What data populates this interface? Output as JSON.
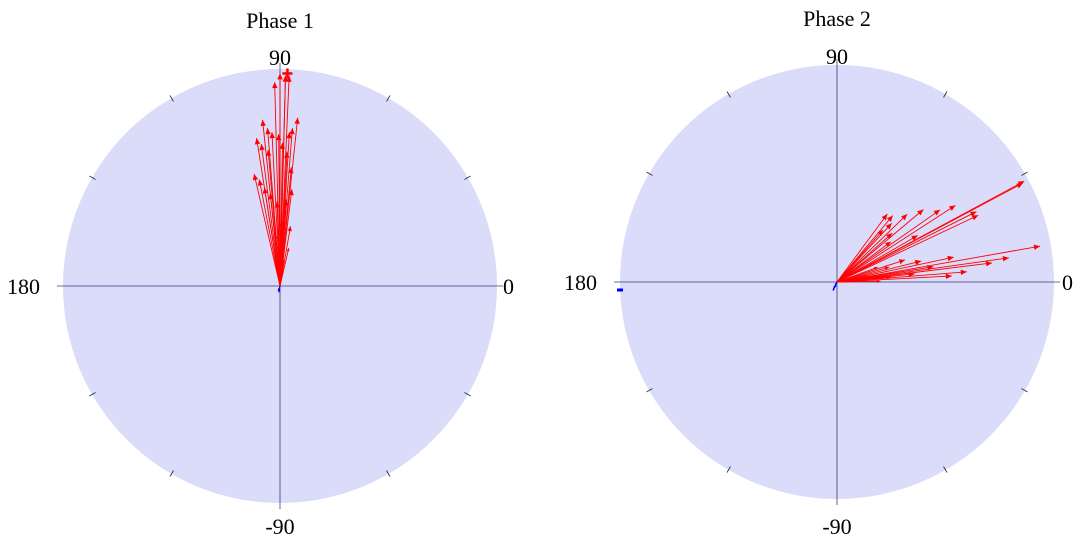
{
  "chart_data": [
    {
      "type": "polar-compass",
      "title": "Phase 1",
      "angle_labels": {
        "east": "0",
        "north": "90",
        "west": "180",
        "south": "-90"
      },
      "radius_max": 1.0,
      "grid": true,
      "colors": {
        "disc": "#dadcfa",
        "axis": "#3a3a7a",
        "tick": "#333333",
        "red": "#ff0000",
        "blue": "#0000ff"
      },
      "vectors_red": [
        {
          "angle_deg": 90.0,
          "r": 0.98
        },
        {
          "angle_deg": 88.5,
          "r": 0.97
        },
        {
          "angle_deg": 88.5,
          "r": 0.97
        },
        {
          "angle_deg": 87.5,
          "r": 0.97
        },
        {
          "angle_deg": 91.5,
          "r": 0.94
        },
        {
          "angle_deg": 84.0,
          "r": 0.78
        },
        {
          "angle_deg": 85.5,
          "r": 0.73
        },
        {
          "angle_deg": 86.5,
          "r": 0.71
        },
        {
          "angle_deg": 96.0,
          "r": 0.77
        },
        {
          "angle_deg": 94.5,
          "r": 0.73
        },
        {
          "angle_deg": 93.0,
          "r": 0.71
        },
        {
          "angle_deg": 99.0,
          "r": 0.69
        },
        {
          "angle_deg": 97.5,
          "r": 0.66
        },
        {
          "angle_deg": 95.0,
          "r": 0.63
        },
        {
          "angle_deg": 90.5,
          "r": 0.7
        },
        {
          "angle_deg": 89.0,
          "r": 0.66
        },
        {
          "angle_deg": 87.0,
          "r": 0.62
        },
        {
          "angle_deg": 84.5,
          "r": 0.55
        },
        {
          "angle_deg": 103.0,
          "r": 0.53
        },
        {
          "angle_deg": 101.0,
          "r": 0.5
        },
        {
          "angle_deg": 99.0,
          "r": 0.46
        },
        {
          "angle_deg": 96.0,
          "r": 0.43
        },
        {
          "angle_deg": 83.0,
          "r": 0.45
        },
        {
          "angle_deg": 86.0,
          "r": 0.4
        },
        {
          "angle_deg": 92.0,
          "r": 0.39
        },
        {
          "angle_deg": 88.0,
          "r": 0.3
        },
        {
          "angle_deg": 80.0,
          "r": 0.28
        },
        {
          "angle_deg": 77.0,
          "r": 0.18
        },
        {
          "angle_deg": 82.0,
          "r": 0.12
        },
        {
          "angle_deg": 95.0,
          "r": 0.24
        }
      ],
      "vectors_blue": [
        {
          "angle_deg": -100.0,
          "r": 0.03
        },
        {
          "angle_deg": -110.0,
          "r": 0.025
        }
      ],
      "markers": [
        {
          "color": "red",
          "angle_deg": 88.0,
          "r": 0.98,
          "shape": "plus"
        }
      ]
    },
    {
      "type": "polar-compass",
      "title": "Phase 2",
      "angle_labels": {
        "east": "0",
        "north": "90",
        "west": "180",
        "south": "-90"
      },
      "radius_max": 1.0,
      "grid": true,
      "colors": {
        "disc": "#dadcfa",
        "axis": "#3a3a7a",
        "tick": "#333333",
        "red": "#ff0000",
        "blue": "#0000ff"
      },
      "vectors_red": [
        {
          "angle_deg": 28.3,
          "r": 0.98
        },
        {
          "angle_deg": 28.0,
          "r": 0.97
        },
        {
          "angle_deg": 25.3,
          "r": 0.72
        },
        {
          "angle_deg": 26.8,
          "r": 0.72
        },
        {
          "angle_deg": 32.9,
          "r": 0.65
        },
        {
          "angle_deg": 35.0,
          "r": 0.58
        },
        {
          "angle_deg": 40.0,
          "r": 0.52
        },
        {
          "angle_deg": 44.0,
          "r": 0.45
        },
        {
          "angle_deg": 50.0,
          "r": 0.4
        },
        {
          "angle_deg": 53.5,
          "r": 0.39
        },
        {
          "angle_deg": 47.0,
          "r": 0.37
        },
        {
          "angle_deg": 48.5,
          "r": 0.32
        },
        {
          "angle_deg": 41.5,
          "r": 0.34
        },
        {
          "angle_deg": 36.8,
          "r": 0.31
        },
        {
          "angle_deg": 30.0,
          "r": 0.43
        },
        {
          "angle_deg": 10.0,
          "r": 0.95
        },
        {
          "angle_deg": 8.0,
          "r": 0.8
        },
        {
          "angle_deg": 7.0,
          "r": 0.72
        },
        {
          "angle_deg": 4.5,
          "r": 0.6
        },
        {
          "angle_deg": 3.0,
          "r": 0.53
        },
        {
          "angle_deg": 12.0,
          "r": 0.55
        },
        {
          "angle_deg": 9.0,
          "r": 0.45
        },
        {
          "angle_deg": 14.0,
          "r": 0.4
        },
        {
          "angle_deg": 6.0,
          "r": 0.36
        },
        {
          "angle_deg": 18.0,
          "r": 0.33
        },
        {
          "angle_deg": 5.0,
          "r": 0.25
        },
        {
          "angle_deg": 16.0,
          "r": 0.25
        },
        {
          "angle_deg": 1.0,
          "r": 0.2
        },
        {
          "angle_deg": 20.0,
          "r": 0.2
        },
        {
          "angle_deg": 12.0,
          "r": 0.14
        },
        {
          "angle_deg": 3.0,
          "r": 0.12
        }
      ],
      "vectors_blue": [
        {
          "angle_deg": -115.0,
          "r": 0.045
        },
        {
          "angle_deg": -118.0,
          "r": 0.035
        },
        {
          "angle_deg": -112.0,
          "r": 0.03
        },
        {
          "angle_deg": -120.0,
          "r": 0.02
        }
      ],
      "markers": [
        {
          "color": "blue",
          "angle_deg": 180.0,
          "r": 1.0,
          "shape": "dash"
        }
      ]
    }
  ]
}
